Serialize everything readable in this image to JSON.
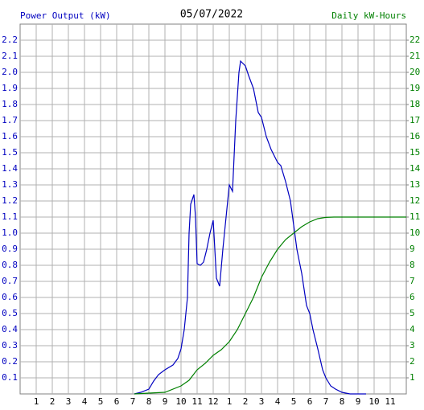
{
  "chart_data": {
    "type": "line",
    "title": "05/07/2022",
    "xlim": [
      0,
      24
    ],
    "xticks": [
      1,
      2,
      3,
      4,
      5,
      6,
      7,
      8,
      9,
      10,
      11,
      12,
      {
        "value": 13,
        "label": "1"
      },
      {
        "value": 14,
        "label": "2"
      },
      {
        "value": 15,
        "label": "3"
      },
      {
        "value": 16,
        "label": "4"
      },
      {
        "value": 17,
        "label": "5"
      },
      {
        "value": 18,
        "label": "6"
      },
      {
        "value": 19,
        "label": "7"
      },
      {
        "value": 20,
        "label": "8"
      },
      {
        "value": 21,
        "label": "9"
      },
      {
        "value": 22,
        "label": "10"
      },
      {
        "value": 23,
        "label": "11"
      }
    ],
    "ylim": [
      0,
      2.3
    ],
    "yticks": [
      0.1,
      0.2,
      0.3,
      0.4,
      0.5,
      0.6,
      0.7,
      0.8,
      0.9,
      {
        "value": 1,
        "label": "1.0"
      },
      1.1,
      1.2,
      1.3,
      1.4,
      1.5,
      1.6,
      1.7,
      1.8,
      1.9,
      {
        "value": 2,
        "label": "2.0"
      },
      2.1,
      2.2
    ],
    "y2lim": [
      0,
      23
    ],
    "y2ticks": [
      1,
      2,
      3,
      4,
      5,
      6,
      7,
      8,
      9,
      10,
      11,
      12,
      13,
      14,
      15,
      16,
      17,
      18,
      19,
      20,
      21,
      22
    ],
    "grid": true,
    "series": [
      {
        "name": "Power Output (kW)",
        "color": "#0000c0",
        "axis": "y",
        "x": [
          7.1,
          7.5,
          8,
          8.3,
          8.6,
          9,
          9.5,
          9.8,
          10,
          10.2,
          10.4,
          10.5,
          10.6,
          10.8,
          10.9,
          11,
          11.2,
          11.4,
          11.6,
          11.8,
          12,
          12.1,
          12.2,
          12.4,
          12.6,
          12.8,
          13,
          13.2,
          13.4,
          13.6,
          13.7,
          14,
          14.2,
          14.5,
          14.8,
          15,
          15.3,
          15.6,
          16,
          16.2,
          16.5,
          16.8,
          17,
          17.2,
          17.5,
          17.8,
          18,
          18.2,
          18.5,
          18.8,
          19,
          19.3,
          19.6,
          20,
          20.5,
          21.5
        ],
        "values": [
          0,
          0.01,
          0.03,
          0.08,
          0.12,
          0.15,
          0.18,
          0.22,
          0.28,
          0.4,
          0.6,
          1.0,
          1.18,
          1.24,
          1.1,
          0.81,
          0.8,
          0.82,
          0.9,
          1.0,
          1.08,
          0.9,
          0.72,
          0.67,
          0.9,
          1.1,
          1.3,
          1.26,
          1.7,
          2.0,
          2.07,
          2.04,
          1.98,
          1.9,
          1.75,
          1.72,
          1.6,
          1.52,
          1.44,
          1.42,
          1.32,
          1.2,
          1.05,
          0.9,
          0.75,
          0.55,
          0.5,
          0.4,
          0.28,
          0.15,
          0.1,
          0.05,
          0.03,
          0.01,
          0,
          0
        ]
      },
      {
        "name": "Daily kW-Hours",
        "color": "#008000",
        "axis": "y2",
        "x": [
          7.1,
          8,
          9,
          10,
          10.5,
          11,
          11.5,
          12,
          12.5,
          13,
          13.5,
          14,
          14.5,
          15,
          15.5,
          16,
          16.5,
          17,
          17.5,
          18,
          18.5,
          19,
          19.5,
          20,
          24
        ],
        "values": [
          0,
          0.05,
          0.1,
          0.5,
          0.85,
          1.5,
          1.9,
          2.4,
          2.75,
          3.25,
          4.0,
          5.0,
          6.0,
          7.25,
          8.2,
          9.0,
          9.6,
          10.0,
          10.4,
          10.7,
          10.9,
          10.98,
          11.0,
          11.0,
          11.0
        ]
      }
    ]
  }
}
